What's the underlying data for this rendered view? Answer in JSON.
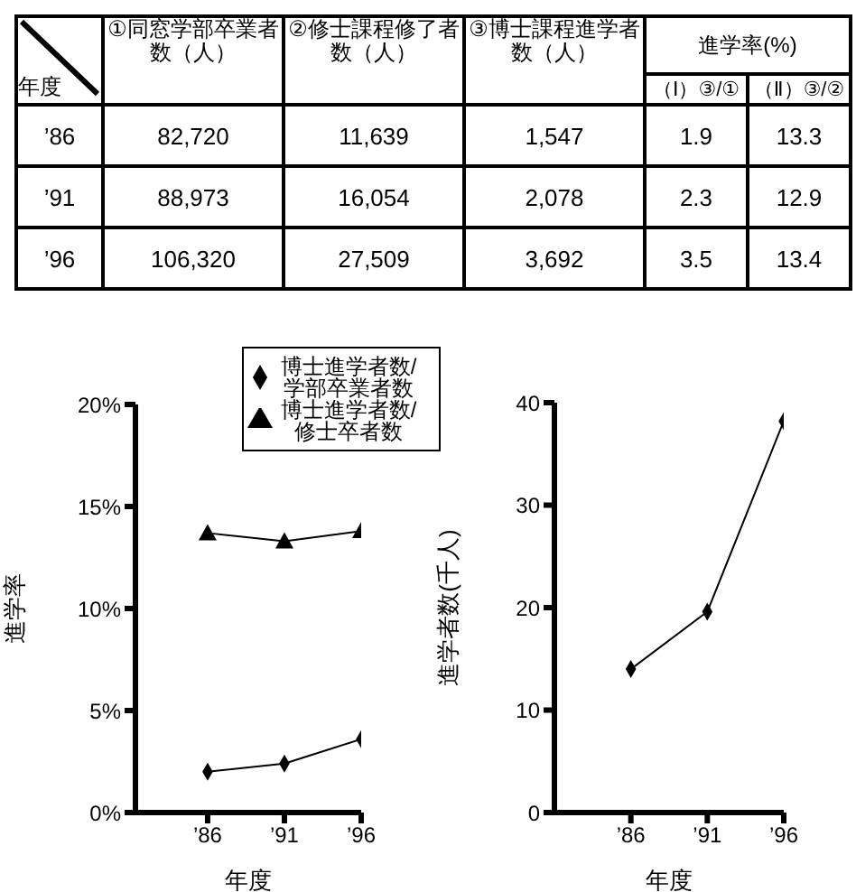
{
  "chart_data": [
    {
      "type": "other",
      "annotations": [
        "年度",
        "①同窓学部卒業者数（人）",
        "②修士課程修了者数（人）",
        "③博士課程進学者数（人）",
        "進学率(%)",
        "（Ⅰ）③/①",
        "（Ⅱ）③/②",
        "’86",
        "82,720",
        "11,639",
        "1,547",
        "1.9",
        "13.3",
        "’91",
        "88,973",
        "16,054",
        "2,078",
        "2.3",
        "12.9",
        "’96",
        "106,320",
        "27,509",
        "3,692",
        "3.5",
        "13.4"
      ]
    },
    {
      "type": "line",
      "categories": [
        "’86",
        "’91",
        "’96"
      ],
      "xlabel": "年度",
      "ylabel": "進学率",
      "ylim": [
        0,
        20
      ],
      "yticks": [
        {
          "value": 0,
          "label": "0%"
        },
        {
          "value": 5,
          "label": "5%"
        },
        {
          "value": 10,
          "label": "10%"
        },
        {
          "value": 15,
          "label": "15%"
        },
        {
          "value": 20,
          "label": "20%"
        }
      ],
      "legend": "top right",
      "grid": false,
      "series": [
        {
          "name": "博士進学者数/学部卒業者数",
          "color": "#000000",
          "marker": "diamond",
          "values": [
            2.0,
            2.4,
            3.6
          ]
        },
        {
          "name": "博士進学者数/修士卒者数",
          "color": "#000000",
          "marker": "triangle",
          "values": [
            13.7,
            13.3,
            13.8
          ]
        }
      ]
    },
    {
      "type": "line",
      "categories": [
        "’86",
        "’91",
        "’96"
      ],
      "xlabel": "年度",
      "ylabel": "進学者数(千人)",
      "ylim": [
        0,
        40
      ],
      "yticks": [
        0,
        10,
        20,
        30,
        40
      ],
      "grid": false,
      "legend": false,
      "marker": "diamond",
      "color": "#000000",
      "values": [
        14.0,
        19.6,
        38.2
      ]
    }
  ]
}
